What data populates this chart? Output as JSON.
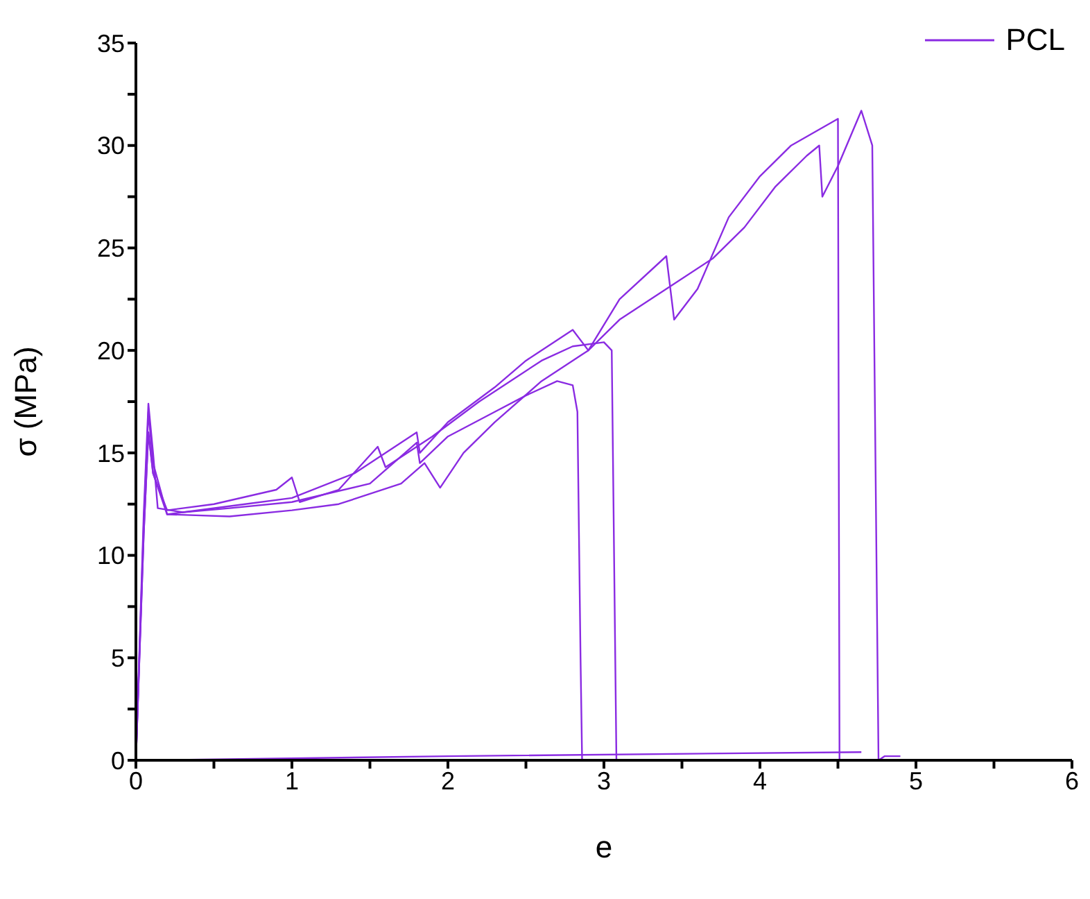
{
  "chart_data": {
    "type": "line",
    "xlabel": "e",
    "ylabel": "σ (MPa)",
    "legend": "top right",
    "marker": "none",
    "line_style": "solid",
    "grid": false,
    "xlim": [
      0,
      6
    ],
    "ylim": [
      0,
      35
    ],
    "xticks": [
      0,
      {
        "value": 0.5,
        "label": null
      },
      1,
      {
        "value": 1.5,
        "label": null
      },
      2,
      {
        "value": 2.5,
        "label": null
      },
      3,
      {
        "value": 3.5,
        "label": null
      },
      4,
      {
        "value": 4.5,
        "label": null
      },
      5,
      {
        "value": 5.5,
        "label": null
      },
      6
    ],
    "yticks": [
      0,
      {
        "value": 2.5,
        "label": null
      },
      5,
      {
        "value": 7.5,
        "label": null
      },
      10,
      {
        "value": 12.5,
        "label": null
      },
      15,
      {
        "value": 17.5,
        "label": null
      },
      20,
      {
        "value": 22.5,
        "label": null
      },
      25,
      {
        "value": 27.5,
        "label": null
      },
      30,
      {
        "value": 32.5,
        "label": null
      },
      35
    ],
    "series": [
      {
        "name": "PCL",
        "color": "#8a2be2",
        "x": [
          0,
          0.05,
          0.08,
          0.11,
          0.14,
          0.3,
          0.6,
          1.0,
          1.5,
          1.8,
          1.82,
          2.0,
          2.3,
          2.5,
          2.7,
          2.8,
          2.83,
          2.85,
          2.86
        ],
        "values": [
          0,
          12,
          17.4,
          15,
          12.3,
          12.1,
          12.3,
          12.6,
          13.5,
          15.5,
          14.5,
          15.8,
          17,
          17.8,
          18.5,
          18.3,
          17,
          5,
          0
        ]
      },
      {
        "color": "#8a2be2",
        "x": [
          0,
          0.05,
          0.08,
          0.11,
          0.2,
          0.5,
          0.9,
          1.0,
          1.05,
          1.3,
          1.55,
          1.6,
          1.9,
          2.2,
          2.4,
          2.6,
          2.8,
          3.0,
          3.05,
          3.08
        ],
        "values": [
          0,
          11,
          16,
          14,
          12.2,
          12.5,
          13.2,
          13.8,
          12.6,
          13.2,
          15.3,
          14.3,
          15.8,
          17.5,
          18.5,
          19.5,
          20.2,
          20.4,
          20,
          0
        ]
      },
      {
        "color": "#8a2be2",
        "x": [
          0,
          0.05,
          0.08,
          0.11,
          0.2,
          0.7,
          1.0,
          1.4,
          1.8,
          1.82,
          2.0,
          2.3,
          2.5,
          2.8,
          2.9,
          3.1,
          3.4,
          3.45,
          3.6,
          3.8,
          4.0,
          4.2,
          4.5,
          4.51
        ],
        "values": [
          0,
          11.5,
          17,
          14.5,
          12,
          12.5,
          12.8,
          14,
          16,
          15,
          16.5,
          18.2,
          19.5,
          21,
          20,
          22.5,
          24.6,
          21.5,
          23,
          26.5,
          28.5,
          30,
          31.3,
          0
        ]
      },
      {
        "color": "#8a2be2",
        "x": [
          0,
          0.05,
          0.08,
          0.11,
          0.2,
          0.6,
          1.0,
          1.3,
          1.7,
          1.85,
          1.95,
          2.1,
          2.3,
          2.6,
          2.9,
          3.1,
          3.4,
          3.7,
          3.9,
          4.1,
          4.3,
          4.38,
          4.4,
          4.5,
          4.65,
          4.72,
          4.76,
          4.8,
          4.9
        ],
        "values": [
          0,
          11,
          16,
          14,
          12,
          11.9,
          12.2,
          12.5,
          13.5,
          14.5,
          13.3,
          15,
          16.5,
          18.5,
          20,
          21.5,
          23,
          24.5,
          26,
          28,
          29.5,
          30,
          27.5,
          29,
          31.7,
          30,
          0,
          0.2,
          0.2
        ]
      },
      {
        "color": "#8a2be2",
        "x": [
          0.1,
          2.0,
          4.65
        ],
        "values": [
          0,
          0.2,
          0.4
        ]
      }
    ]
  }
}
